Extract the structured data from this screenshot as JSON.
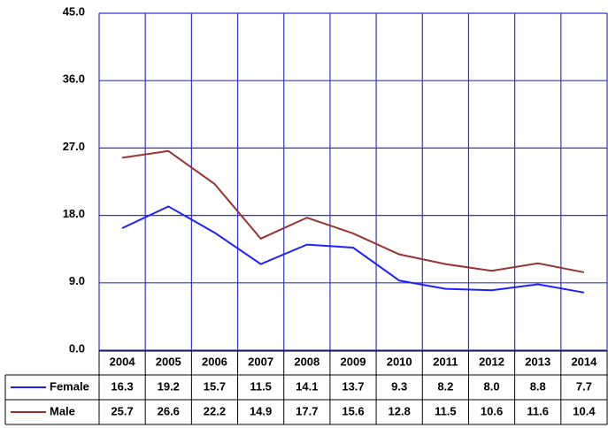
{
  "chart_data": {
    "type": "line",
    "categories": [
      "2004",
      "2005",
      "2006",
      "2007",
      "2008",
      "2009",
      "2010",
      "2011",
      "2012",
      "2013",
      "2014"
    ],
    "series": [
      {
        "name": "Female",
        "color": "#1f1fff",
        "values": [
          16.3,
          19.2,
          15.7,
          11.5,
          14.1,
          13.7,
          9.3,
          8.2,
          8.0,
          8.8,
          7.7
        ],
        "value_labels": [
          "16.3",
          "19.2",
          "15.7",
          "11.5",
          "14.1",
          "13.7",
          "9.3",
          "8.2",
          "8.0",
          "8.8",
          "7.7"
        ]
      },
      {
        "name": "Male",
        "color": "#993333",
        "values": [
          25.7,
          26.6,
          22.2,
          14.9,
          17.7,
          15.6,
          12.8,
          11.5,
          10.6,
          11.6,
          10.4
        ],
        "value_labels": [
          "25.7",
          "26.6",
          "22.2",
          "14.9",
          "17.7",
          "15.6",
          "12.8",
          "11.5",
          "10.6",
          "11.6",
          "10.4"
        ]
      }
    ],
    "ylim": [
      0,
      45
    ],
    "yticks": [
      {
        "value": 0,
        "label": "0.0"
      },
      {
        "value": 9,
        "label": "9.0"
      },
      {
        "value": 18,
        "label": "18.0"
      },
      {
        "value": 27,
        "label": "27.0"
      },
      {
        "value": 36,
        "label": "36.0"
      },
      {
        "value": 45,
        "label": "45.0"
      }
    ],
    "grid": true
  }
}
